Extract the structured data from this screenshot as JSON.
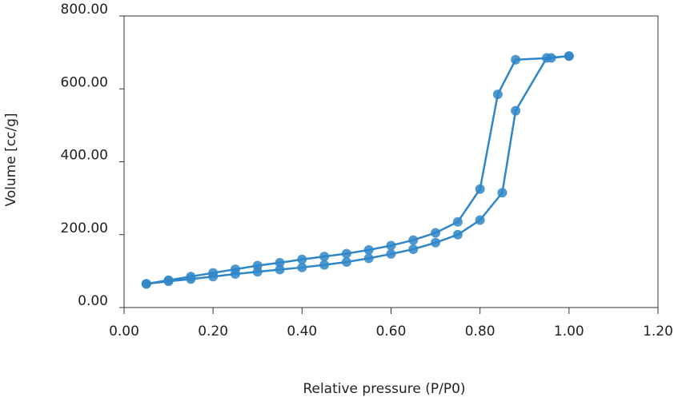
{
  "chart_data": {
    "type": "line",
    "xlabel": "Relative pressure (P/P0)",
    "ylabel": "Volume [cc/g]",
    "xlim": [
      0,
      1.2
    ],
    "ylim": [
      0,
      800
    ],
    "xticks": [
      {
        "value": 0,
        "label": "0.00"
      },
      {
        "value": 0.2,
        "label": "0.20"
      },
      {
        "value": 0.4,
        "label": "0.40"
      },
      {
        "value": 0.6,
        "label": "0.60"
      },
      {
        "value": 0.8,
        "label": "0.80"
      },
      {
        "value": 1,
        "label": "1.00"
      },
      {
        "value": 1.2,
        "label": "1.20"
      }
    ],
    "yticks": [
      {
        "value": 0,
        "label": "0.00"
      },
      {
        "value": 200,
        "label": "200.00"
      },
      {
        "value": 400,
        "label": "400.00"
      },
      {
        "value": 600,
        "label": "600.00"
      },
      {
        "value": 800,
        "label": "800.00"
      }
    ],
    "series": [
      {
        "color": "#2f86c8",
        "x": [
          0.05,
          0.1,
          0.15,
          0.2,
          0.25,
          0.3,
          0.35,
          0.4,
          0.45,
          0.5,
          0.55,
          0.6,
          0.65,
          0.7,
          0.75,
          0.8,
          0.85,
          0.88,
          0.95,
          1.0
        ],
        "values": [
          65,
          72,
          78,
          85,
          92,
          98,
          104,
          110,
          117,
          125,
          135,
          147,
          160,
          178,
          200,
          240,
          315,
          540,
          685,
          690
        ]
      },
      {
        "color": "#2f86c8",
        "x": [
          1.0,
          0.96,
          0.88,
          0.84,
          0.8,
          0.75,
          0.7,
          0.65,
          0.6,
          0.55,
          0.5,
          0.45,
          0.4,
          0.35,
          0.3,
          0.25,
          0.2,
          0.15,
          0.1,
          0.05
        ],
        "values": [
          690,
          685,
          680,
          585,
          325,
          235,
          205,
          185,
          170,
          158,
          148,
          140,
          132,
          123,
          115,
          105,
          95,
          85,
          75,
          65
        ]
      }
    ]
  }
}
